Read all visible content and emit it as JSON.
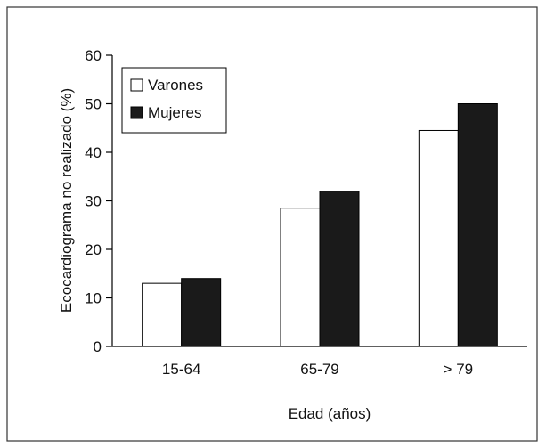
{
  "chart_data": {
    "type": "bar",
    "title": "",
    "xlabel": "Edad (años)",
    "ylabel": "Ecocardiograma no realizado (%)",
    "categories": [
      "15-64",
      "65-79",
      "> 79"
    ],
    "ylim": [
      0,
      60
    ],
    "yticks": [
      0,
      10,
      20,
      30,
      40,
      50,
      60
    ],
    "grid": false,
    "legend_position": "top-left",
    "series": [
      {
        "name": "Varones",
        "color": "#ffffff",
        "values": [
          13,
          28.5,
          44.5
        ]
      },
      {
        "name": "Mujeres",
        "color": "#1a1a1a",
        "values": [
          14,
          32,
          50
        ]
      }
    ]
  }
}
